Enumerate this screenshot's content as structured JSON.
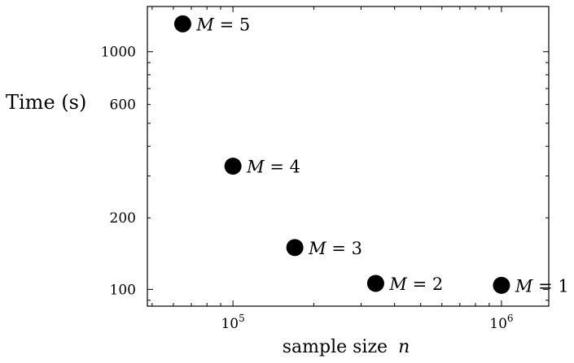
{
  "chart_data": {
    "type": "scatter",
    "title": "",
    "xlabel": "sample size",
    "xlabel_var": "n",
    "ylabel": "Time (s)",
    "x_scale": "log",
    "y_scale": "log",
    "xlim": [
      48000,
      1500000
    ],
    "ylim": [
      85,
      1550
    ],
    "x_ticks": [
      {
        "value": 100000,
        "base": "10",
        "exp": "5"
      },
      {
        "value": 1000000,
        "base": "10",
        "exp": "6"
      }
    ],
    "y_ticks": [
      {
        "value": 100,
        "label": "100"
      },
      {
        "value": 200,
        "label": "200"
      },
      {
        "value": 600,
        "label": "600"
      },
      {
        "value": 1000,
        "label": "1000"
      }
    ],
    "grid": false,
    "legend": "none",
    "marker_color": "#000000",
    "points": [
      {
        "x": 65000,
        "y": 1310,
        "label_var": "M",
        "label_rest": " = 5"
      },
      {
        "x": 100000,
        "y": 330,
        "label_var": "M",
        "label_rest": " = 4"
      },
      {
        "x": 170000,
        "y": 150,
        "label_var": "M",
        "label_rest": " = 3"
      },
      {
        "x": 340000,
        "y": 106,
        "label_var": "M",
        "label_rest": " = 2"
      },
      {
        "x": 1000000,
        "y": 104,
        "label_var": "M",
        "label_rest": " = 1"
      }
    ]
  }
}
